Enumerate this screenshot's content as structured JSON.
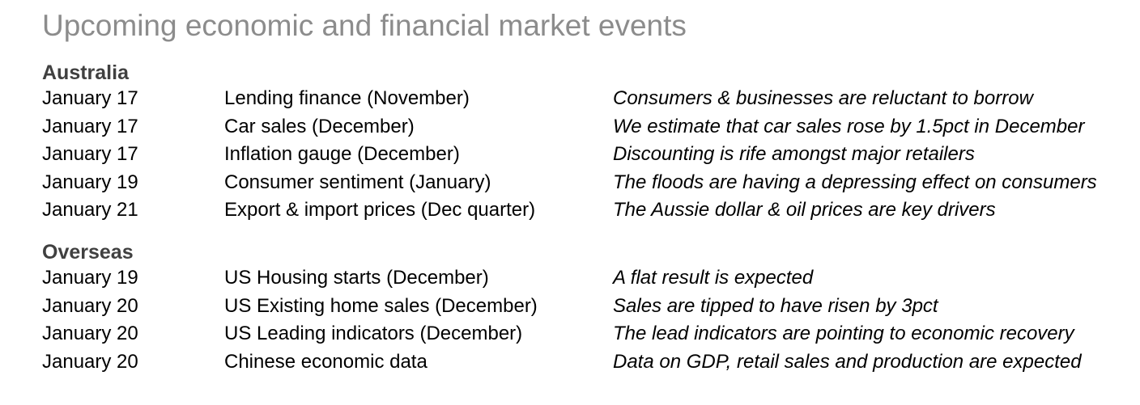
{
  "title": "Upcoming economic and financial market events",
  "australia": {
    "heading": "Australia",
    "rows": [
      {
        "date": "January 17",
        "event": "Lending finance (November)",
        "comment": "Consumers & businesses are reluctant to borrow"
      },
      {
        "date": "January 17",
        "event": "Car sales (December)",
        "comment": "We estimate that car sales rose by 1.5pct in December"
      },
      {
        "date": "January 17",
        "event": "Inflation gauge (December)",
        "comment": "Discounting is rife amongst major retailers"
      },
      {
        "date": "January 19",
        "event": "Consumer sentiment (January)",
        "comment": "The floods are having a depressing effect on consumers"
      },
      {
        "date": "January 21",
        "event": "Export & import prices (Dec quarter)",
        "comment": "The Aussie dollar & oil prices are key drivers"
      }
    ]
  },
  "overseas": {
    "heading": "Overseas",
    "rows": [
      {
        "date": "January 19",
        "event": "US Housing starts (December)",
        "comment": "A flat result is expected"
      },
      {
        "date": "January 20",
        "event": "US Existing home sales (December)",
        "comment": "Sales are tipped to have risen by 3pct"
      },
      {
        "date": "January 20",
        "event": "US Leading indicators (December)",
        "comment": "The lead indicators are pointing to economic recovery"
      },
      {
        "date": "January 20",
        "event": "Chinese economic data",
        "comment": "Data on GDP, retail sales and production are expected"
      }
    ]
  }
}
